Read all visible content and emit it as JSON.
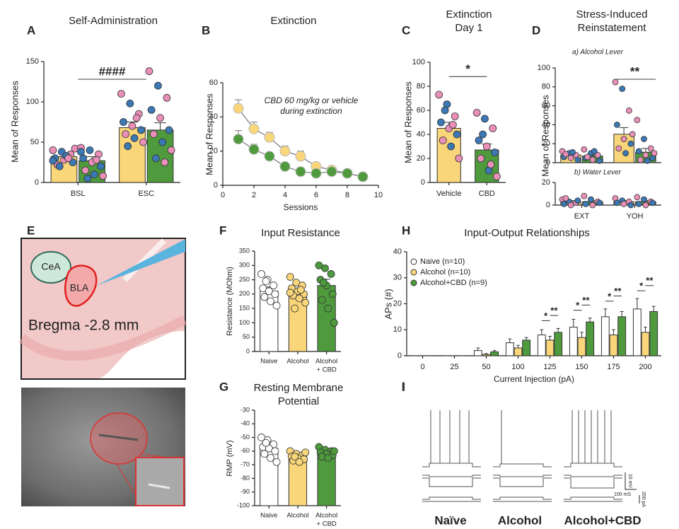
{
  "chart_data": [
    {
      "type": "bar",
      "panel": "A",
      "title": "Self-Administration",
      "y_label": "Mean of Responses",
      "categories": [
        "BSL",
        "ESC"
      ],
      "series": [
        {
          "color": "#f9d67a",
          "values": [
            32,
            68
          ],
          "errors": [
            4,
            7
          ],
          "points": [
            [
              40,
              38,
              35,
              30,
              28,
              25,
              22,
              33,
              42,
              20,
              30,
              27
            ],
            [
              110,
              98,
              85,
              75,
              70,
              65,
              60,
              55,
              50,
              45,
              80
            ]
          ]
        },
        {
          "color": "#4e9a3d",
          "values": [
            27,
            65
          ],
          "errors": [
            5,
            9
          ],
          "points": [
            [
              43,
              40,
              35,
              30,
              25,
              20,
              15,
              10,
              8,
              5,
              28,
              38
            ],
            [
              138,
              120,
              105,
              90,
              80,
              65,
              60,
              50,
              40,
              30,
              25
            ]
          ]
        }
      ],
      "point_colors": [
        "#e98fb8",
        "#3b78b4"
      ],
      "ylim": [
        0,
        150
      ],
      "yticks": [
        0,
        50,
        100,
        150
      ],
      "annotation": "####"
    },
    {
      "type": "line",
      "panel": "B",
      "title": "Extinction",
      "x_label": "Sessions",
      "y_label": "Mean of Responses",
      "x": [
        1,
        2,
        3,
        4,
        5,
        6,
        7,
        8,
        9
      ],
      "series": [
        {
          "color": "#f9d67a",
          "values": [
            45,
            33,
            28,
            20,
            17,
            11,
            9,
            7,
            5
          ],
          "errors": [
            5,
            4,
            3,
            3,
            3,
            2,
            1,
            1,
            1
          ]
        },
        {
          "color": "#4e9a3d",
          "values": [
            27,
            21,
            17,
            11,
            8,
            7,
            8,
            7,
            5
          ],
          "errors": [
            5,
            3,
            2,
            2,
            1,
            1,
            1,
            1,
            1
          ]
        }
      ],
      "xlim": [
        0,
        10
      ],
      "xticks": [
        0,
        2,
        4,
        6,
        8,
        10
      ],
      "ylim": [
        0,
        60
      ],
      "yticks": [
        0,
        20,
        40,
        60
      ],
      "annotation": [
        "CBD 60 mg/kg or vehicle",
        "during extinction"
      ],
      "annotation_color": "#d9433f"
    },
    {
      "type": "bar",
      "panel": "C",
      "title": [
        "Extinction",
        "Day 1"
      ],
      "y_label": "Mean of Responses",
      "categories": [
        "Vehicle",
        "CBD"
      ],
      "values": [
        45,
        27
      ],
      "errors": [
        5,
        5
      ],
      "colors": [
        "#f9d67a",
        "#4e9a3d"
      ],
      "points": [
        [
          73,
          65,
          55,
          50,
          45,
          40,
          35,
          30,
          20,
          60,
          48
        ],
        [
          58,
          53,
          45,
          35,
          30,
          25,
          20,
          10,
          5,
          40,
          15
        ]
      ],
      "point_colors": [
        "#e98fb8",
        "#3b78b4"
      ],
      "ylim": [
        0,
        100
      ],
      "yticks": [
        0,
        20,
        40,
        60,
        80,
        100
      ],
      "annotation": "*"
    },
    {
      "type": "bar",
      "panel": "D",
      "title": [
        "Stress-Induced",
        "Reinstatement"
      ],
      "subtitle": "a) Alcohol Lever",
      "y_label": "Mean of Responses",
      "series": [
        {
          "color": "#f9d67a",
          "values": [
            8,
            30
          ],
          "errors": [
            1,
            7
          ],
          "points": [
            [
              12,
              10,
              8,
              6,
              5,
              3,
              9,
              11
            ],
            [
              85,
              78,
              55,
              40,
              25,
              20,
              15,
              10,
              30
            ]
          ]
        },
        {
          "color": "#4e9a3d",
          "values": [
            7,
            11
          ],
          "errors": [
            1,
            4
          ],
          "points": [
            [
              14,
              10,
              8,
              5,
              3,
              2,
              6,
              12
            ],
            [
              45,
              25,
              15,
              12,
              8,
              5,
              3,
              2,
              10
            ]
          ]
        }
      ],
      "point_colors": [
        "#e98fb8",
        "#3b78b4"
      ],
      "ylim": [
        0,
        100
      ],
      "yticks": [
        0,
        20,
        40,
        60,
        80,
        100
      ],
      "annotation": "**"
    },
    {
      "type": "bar",
      "subtitle": "b) Water Lever",
      "categories": [
        "EXT",
        "YOH"
      ],
      "series": [
        {
          "color": "#f9d67a",
          "values": [
            3,
            3
          ],
          "errors": [
            1,
            1
          ],
          "points": [
            [
              5,
              3,
              2,
              1,
              0,
              4,
              6
            ],
            [
              6,
              4,
              3,
              2,
              1,
              0
            ]
          ]
        },
        {
          "color": "#4e9a3d",
          "values": [
            3,
            3
          ],
          "errors": [
            1,
            1
          ],
          "points": [
            [
              8,
              5,
              3,
              1,
              0,
              2
            ],
            [
              7,
              5,
              3,
              1,
              0,
              2
            ]
          ]
        }
      ],
      "point_colors": [
        "#e98fb8",
        "#3b78b4"
      ],
      "ylim": [
        0,
        20
      ],
      "yticks": [
        0,
        20
      ]
    },
    {
      "type": "bar",
      "panel": "F",
      "title": "Input Resistance",
      "y_label": "Resistance (MOhm)",
      "categories": [
        "Naive",
        "Alcohol",
        [
          "Alcohol",
          "+ CBD"
        ]
      ],
      "values": [
        210,
        205,
        230
      ],
      "errors": [
        15,
        12,
        22
      ],
      "colors": [
        "#ffffff",
        "#f9d67a",
        "#4e9a3d"
      ],
      "points": [
        [
          270,
          250,
          230,
          220,
          210,
          200,
          190,
          175,
          160,
          245
        ],
        [
          260,
          240,
          230,
          220,
          210,
          200,
          195,
          185,
          170,
          150,
          215,
          205
        ],
        [
          300,
          290,
          270,
          250,
          230,
          200,
          180,
          150,
          100,
          240
        ]
      ],
      "ylim": [
        0,
        350
      ],
      "yticks": [
        0,
        50,
        100,
        150,
        200,
        250,
        300,
        350
      ]
    },
    {
      "type": "bar",
      "panel": "G",
      "title": [
        "Resting Membrane",
        "Potential"
      ],
      "y_label": "RMP (mV)",
      "categories": [
        "Naive",
        "Alcohol",
        [
          "Alcohol",
          "+ CBD"
        ]
      ],
      "values": [
        -58,
        -64,
        -62
      ],
      "errors": [
        2,
        1.5,
        1.5
      ],
      "colors": [
        "#ffffff",
        "#f9d67a",
        "#4e9a3d"
      ],
      "points": [
        [
          -50,
          -52,
          -55,
          -57,
          -58,
          -60,
          -62,
          -65,
          -68,
          -54
        ],
        [
          -60,
          -62,
          -63,
          -64,
          -65,
          -66,
          -67,
          -68,
          -61,
          -64
        ],
        [
          -57,
          -59,
          -60,
          -61,
          -62,
          -63,
          -64,
          -65,
          -60
        ]
      ],
      "ylim": [
        -100,
        -30
      ],
      "yticks": [
        -100,
        -90,
        -80,
        -70,
        -60,
        -50,
        -40,
        -30
      ]
    },
    {
      "type": "bar",
      "panel": "H",
      "title": "Input-Output Relationships",
      "x_label": "Current Injection (pA)",
      "y_label": "APs (#)",
      "categories": [
        "0",
        "25",
        "50",
        "100",
        "125",
        "150",
        "175",
        "200"
      ],
      "series": [
        {
          "name": "Naive (n=10)",
          "color": "#ffffff",
          "values": [
            0,
            0,
            2,
            5,
            8,
            11,
            15,
            18
          ],
          "errors": [
            0,
            0,
            1,
            1.5,
            2,
            3,
            3,
            4
          ]
        },
        {
          "name": "Alcohol (n=10)",
          "color": "#f9d67a",
          "values": [
            0,
            0,
            0.5,
            3,
            6,
            7,
            8,
            9
          ],
          "errors": [
            0,
            0,
            0.3,
            1,
            1.5,
            2,
            2,
            2
          ]
        },
        {
          "name": "Alcohol+CBD  (n=9)",
          "color": "#4e9a3d",
          "values": [
            0,
            0,
            1.5,
            6,
            9,
            13,
            15,
            17
          ],
          "errors": [
            0,
            0,
            0.5,
            1,
            1.5,
            1.5,
            2,
            2
          ]
        }
      ],
      "legend": "upper left",
      "ylim": [
        0,
        40
      ],
      "yticks": [
        0,
        10,
        20,
        30,
        40
      ],
      "annotations": [
        {
          "at": "125",
          "marks": [
            "*",
            "**"
          ]
        },
        {
          "at": "150",
          "marks": [
            "*",
            "**"
          ]
        },
        {
          "at": "175",
          "marks": [
            "*",
            "**"
          ]
        },
        {
          "at": "200",
          "marks": [
            "*",
            "**"
          ]
        }
      ]
    }
  ],
  "diagram": {
    "panel": "E",
    "labels": [
      "CeA",
      "BLA"
    ],
    "caption": "Bregma -2.8 mm"
  },
  "traces": {
    "panel": "I",
    "groups": [
      {
        "label": "Naïve",
        "color": "#1a1a1a"
      },
      {
        "label": "Alcohol",
        "color": "#f2c12e"
      },
      {
        "label": "Alcohol+CBD",
        "color": "#4e9a3d"
      }
    ],
    "scale": [
      "10 mV",
      "100 mS",
      "200 pA"
    ]
  }
}
